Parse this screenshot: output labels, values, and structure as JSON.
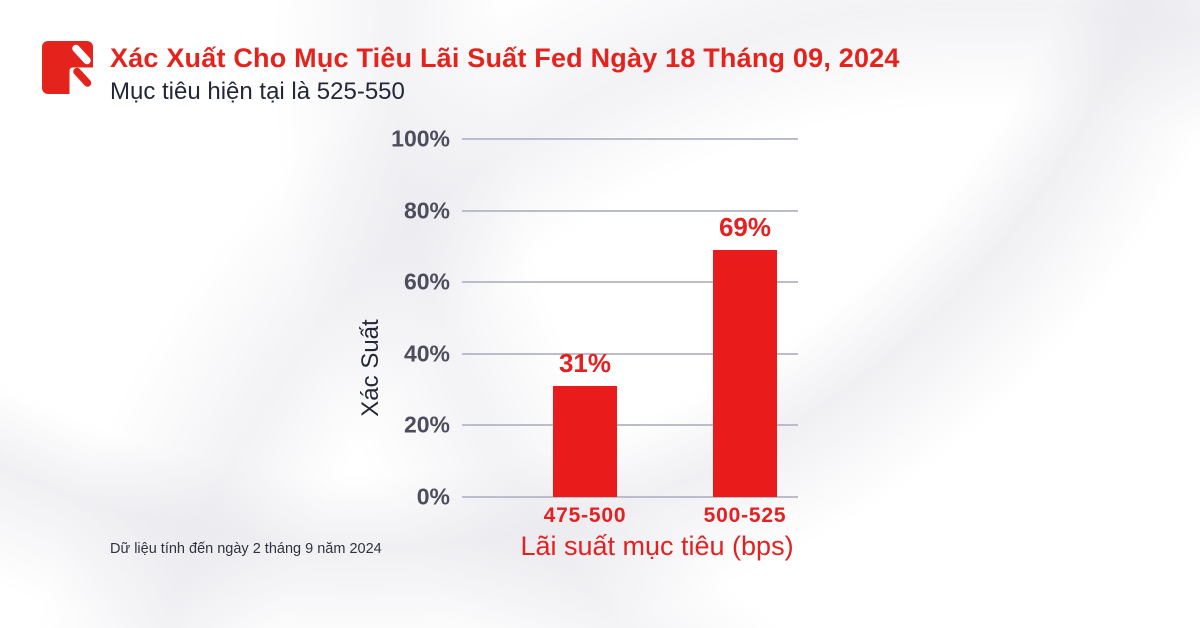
{
  "header": {
    "title": "Xác Xuất Cho Mục Tiêu Lãi Suất Fed Ngày 18 Tháng 09, 2024",
    "subtitle": "Mục tiêu hiện tại là 525-550"
  },
  "footer": {
    "note": "Dữ liệu tính đến ngày 2 tháng 9 năm 2024"
  },
  "colors": {
    "title_red": "#E4231D",
    "bar_red": "#EA1B1B",
    "chart_text_red": "#E52020",
    "dark_text": "#222838",
    "axis_tick_text": "#4D4D5E",
    "gridline": "#BCBDCC",
    "background": "#FFFFFF"
  },
  "logo": {
    "icon": "brand-logo-icon"
  },
  "chart_data": {
    "type": "bar",
    "title": "Xác Xuất Cho Mục Tiêu Lãi Suất Fed Ngày 18 Tháng 09, 2024",
    "subtitle": "Mục tiêu hiện tại là 525-550",
    "categories": [
      "475-500",
      "500-525"
    ],
    "values": [
      31,
      69
    ],
    "value_labels": [
      "31%",
      "69%"
    ],
    "xlabel": "Lãi suất mục tiêu (bps)",
    "ylabel": "Xác Suất",
    "ylim": [
      0,
      100
    ],
    "yticks": [
      0,
      20,
      40,
      60,
      80,
      100
    ],
    "ytick_labels": [
      "0%",
      "20%",
      "40%",
      "60%",
      "80%",
      "100%"
    ],
    "grid": "horizontal-only",
    "legend": "none",
    "bar_color": "#EA1B1B",
    "note": "Dữ liệu tính đến ngày 2 tháng 9 năm 2024"
  }
}
